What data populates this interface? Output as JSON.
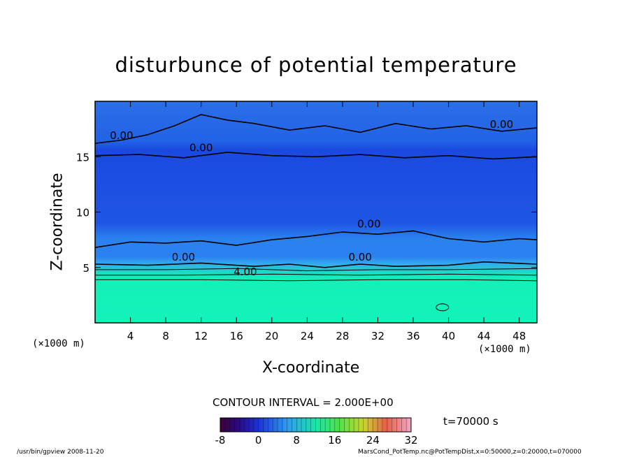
{
  "chart_data": {
    "type": "heatmap",
    "title": "disturbunce of potential temperature",
    "xlabel": "X-coordinate",
    "ylabel": "Z-coordinate",
    "x_unit": "(×1000 m)",
    "y_unit": "(×1000 m)",
    "xlim": [
      0,
      50
    ],
    "ylim": [
      0,
      20
    ],
    "x_ticks": [
      4,
      8,
      12,
      16,
      20,
      24,
      28,
      32,
      36,
      40,
      44,
      48
    ],
    "y_ticks": [
      5,
      10,
      15
    ],
    "contour_labels": [
      "0.00",
      "0.00",
      "0.00",
      "0.00",
      "0.00",
      "0.00",
      "4.00"
    ],
    "contour_interval_text": "CONTOUR INTERVAL = 2.000E+00",
    "colorbar": {
      "min": -8,
      "max": 32,
      "ticks": [
        -8,
        0,
        8,
        16,
        24,
        32
      ]
    },
    "time_text": "t=70000 s",
    "footer_left": "/usr/bin/gpview   2008-11-20",
    "footer_right": "MarsCond_PotTemp.nc@PotTempDist,x=0:50000,z=0:20000,t=070000",
    "colors": {
      "field_low": "#1f55e6",
      "field_mid": "#2f7ef0",
      "field_bottom": "#14f0b8"
    }
  }
}
